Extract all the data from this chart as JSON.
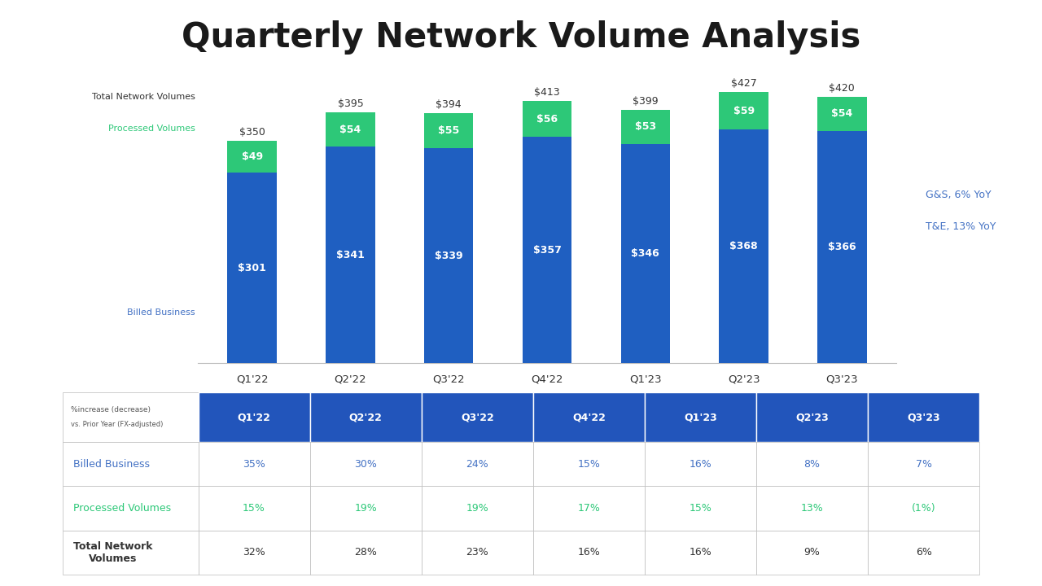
{
  "title": "Quarterly Network Volume Analysis",
  "title_fontsize": 30,
  "title_fontweight": "bold",
  "background_color": "#ffffff",
  "quarters": [
    "Q1'22",
    "Q2'22",
    "Q3'22",
    "Q4'22",
    "Q1'23",
    "Q2'23",
    "Q3'23"
  ],
  "billed_business": [
    301,
    341,
    339,
    357,
    346,
    368,
    366
  ],
  "processed_volumes": [
    49,
    54,
    55,
    56,
    53,
    59,
    54
  ],
  "totals": [
    350,
    395,
    394,
    413,
    399,
    427,
    420
  ],
  "bar_color_blue": "#1F5FC1",
  "bar_color_green": "#2DC878",
  "bar_label_total_color": "#333333",
  "bar_label_inner_color": "#ffffff",
  "yoy_text": [
    "G&S, 6% YoY",
    "T&E, 13% YoY"
  ],
  "yoy_color": "#4472C4",
  "left_label_total": "Total Network Volumes",
  "left_label_processed": "Processed Volumes",
  "left_label_billed": "Billed Business",
  "left_label_color_total": "#333333",
  "left_label_color_processed": "#2DC878",
  "left_label_color_billed": "#4472C4",
  "table_header_bg": "#2255BB",
  "table_header_text_color": "#ffffff",
  "table_header_fontsize": 9,
  "table_note_line1": "%increase (decrease)",
  "table_note_line2": "vs. Prior Year (FX-adjusted)",
  "table_row_label_billed": "Billed Business",
  "table_row_label_processed": "Processed Volumes",
  "table_row_label_total": "Total Network\nVolumes",
  "table_billed_business_values": [
    "35%",
    "30%",
    "24%",
    "15%",
    "16%",
    "8%",
    "7%"
  ],
  "table_processed_volumes_values": [
    "15%",
    "19%",
    "19%",
    "17%",
    "15%",
    "13%",
    "(1%)"
  ],
  "table_total_network_values": [
    "32%",
    "28%",
    "23%",
    "16%",
    "16%",
    "9%",
    "6%"
  ],
  "table_billed_color": "#4472C4",
  "table_processed_color": "#2DC878",
  "table_total_color": "#333333",
  "table_fontsize": 9,
  "grid_color": "#bbbbbb"
}
